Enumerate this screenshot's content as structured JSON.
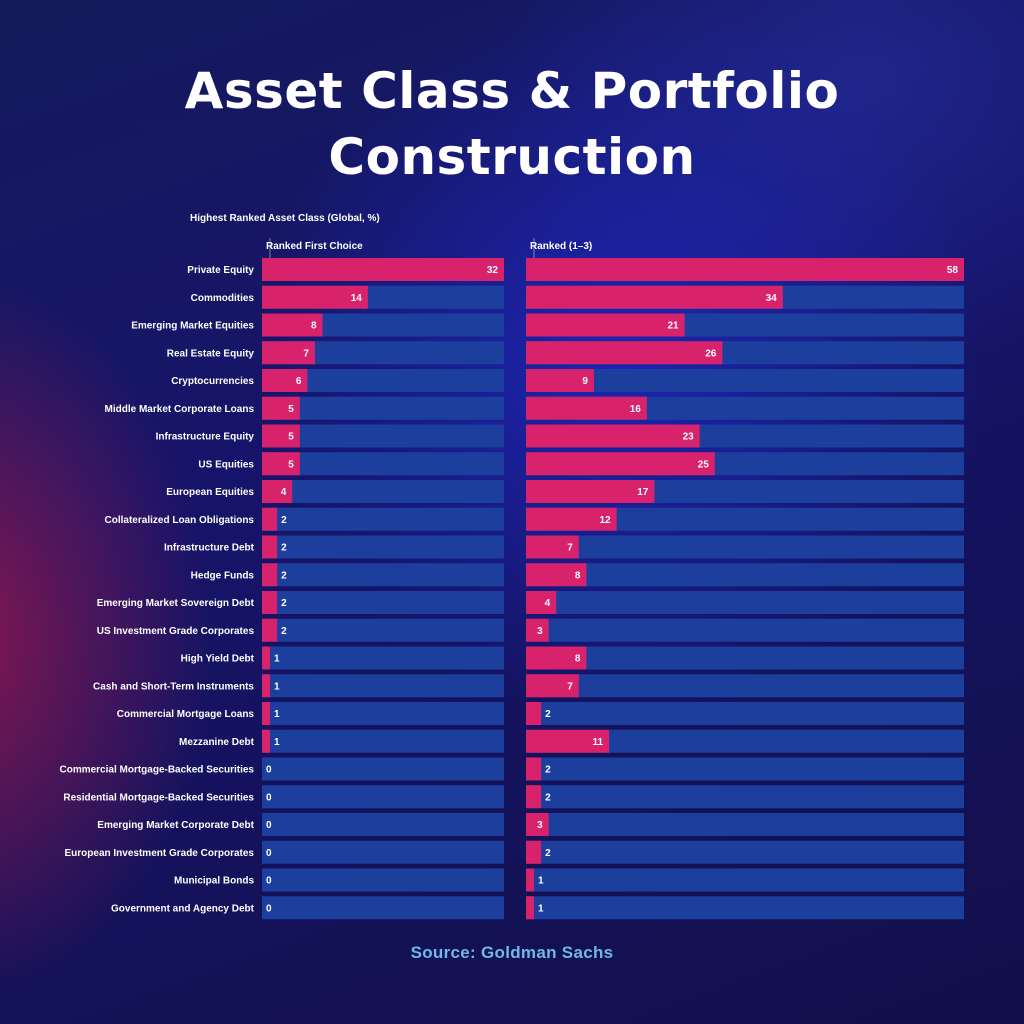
{
  "title": "Asset Class & Portfolio Construction",
  "source": "Source: Goldman Sachs",
  "colors": {
    "bar": "#d8226b",
    "track": "#1c3f9e",
    "title": "#ffffff",
    "source": "#6fb8e8"
  },
  "chart_data": {
    "type": "bar",
    "orientation": "horizontal",
    "title": "Highest Ranked Asset Class (Global, %)",
    "categories": [
      "Private Equity",
      "Commodities",
      "Emerging Market Equities",
      "Real Estate Equity",
      "Cryptocurrencies",
      "Middle Market Corporate Loans",
      "Infrastructure Equity",
      "US Equities",
      "European Equities",
      "Collateralized Loan Obligations",
      "Infrastructure Debt",
      "Hedge Funds",
      "Emerging Market Sovereign Debt",
      "US Investment Grade Corporates",
      "High Yield Debt",
      "Cash and Short-Term Instruments",
      "Commercial Mortgage Loans",
      "Mezzanine Debt",
      "Commercial Mortgage-Backed Securities",
      "Residential Mortgage-Backed Securities",
      "Emerging Market Corporate Debt",
      "European Investment Grade Corporates",
      "Municipal Bonds",
      "Government and Agency Debt"
    ],
    "series": [
      {
        "name": "Ranked First Choice",
        "values": [
          32,
          14,
          8,
          7,
          6,
          5,
          5,
          5,
          4,
          2,
          2,
          2,
          2,
          2,
          1,
          1,
          1,
          1,
          0,
          0,
          0,
          0,
          0,
          0
        ],
        "xlim": [
          0,
          32
        ]
      },
      {
        "name": "Ranked (1–3)",
        "values": [
          58,
          34,
          21,
          26,
          9,
          16,
          23,
          25,
          17,
          12,
          7,
          8,
          4,
          3,
          8,
          7,
          2,
          11,
          2,
          2,
          3,
          2,
          1,
          1
        ],
        "xlim": [
          0,
          58
        ]
      }
    ],
    "grid": false,
    "legend": "none"
  }
}
